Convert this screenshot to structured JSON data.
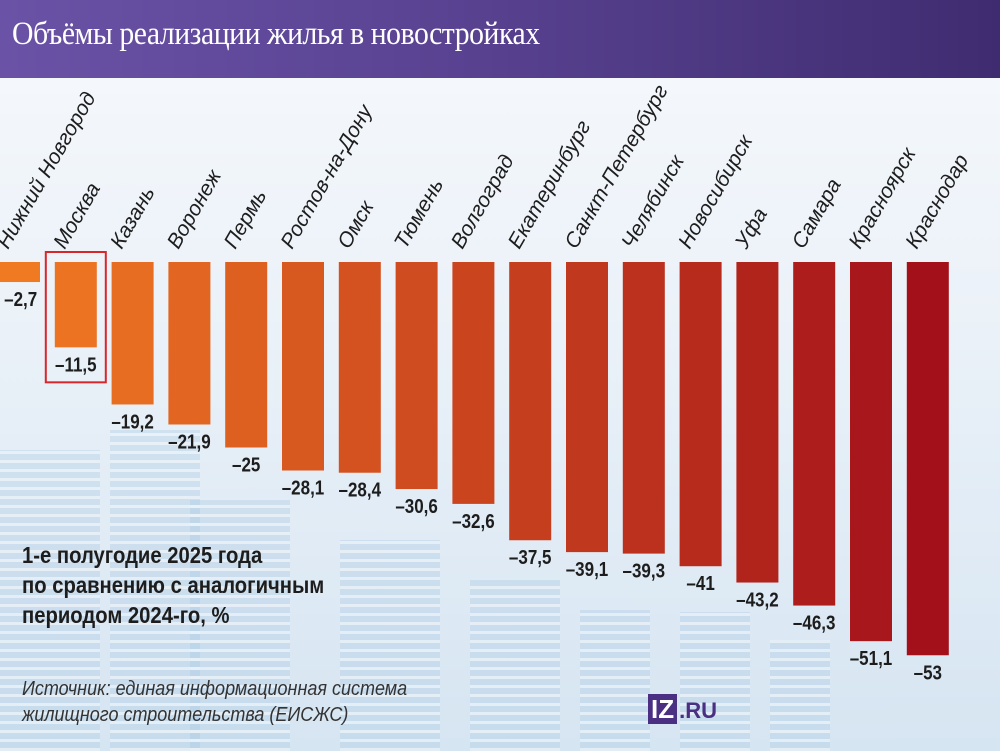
{
  "header": {
    "title": "Объёмы реализации жилья в новостройках"
  },
  "subtitle": [
    "1-е полугодие 2025 года",
    "по сравнению с аналогичным",
    "периодом 2024-го, %"
  ],
  "source": [
    "Источник: единая информационная система",
    "жилищного строительства (ЕИСЖС)"
  ],
  "logo": {
    "box": "IZ",
    "suffix": ".RU"
  },
  "colors": {
    "bar_start": "#f07a22",
    "bar_end": "#a3101a",
    "highlight": "#d8262a",
    "header": "#5b4696"
  },
  "chart_data": {
    "type": "bar",
    "orientation": "vertical-negative",
    "highlighted": "Москва",
    "categories": [
      "Нижний Новгород",
      "Москва",
      "Казань",
      "Воронеж",
      "Пермь",
      "Ростов-на-Дону",
      "Омск",
      "Тюмень",
      "Волгоград",
      "Екатеринбург",
      "Санкт-Петербург",
      "Челябинск",
      "Новосибирск",
      "Уфа",
      "Самара",
      "Красноярск",
      "Краснодар"
    ],
    "values": [
      -2.7,
      -11.5,
      -19.2,
      -21.9,
      -25,
      -28.1,
      -28.4,
      -30.6,
      -32.6,
      -37.5,
      -39.1,
      -39.3,
      -41,
      -43.2,
      -46.3,
      -51.1,
      -53
    ],
    "labels": [
      "–2,7",
      "–11,5",
      "–19,2",
      "–21,9",
      "–25",
      "–28,1",
      "–28,4",
      "–30,6",
      "–32,6",
      "–37,5",
      "–39,1",
      "–39,3",
      "–41",
      "–43,2",
      "–46,3",
      "–51,1",
      "–53"
    ],
    "ylim": [
      -53,
      0
    ],
    "grid": false
  }
}
